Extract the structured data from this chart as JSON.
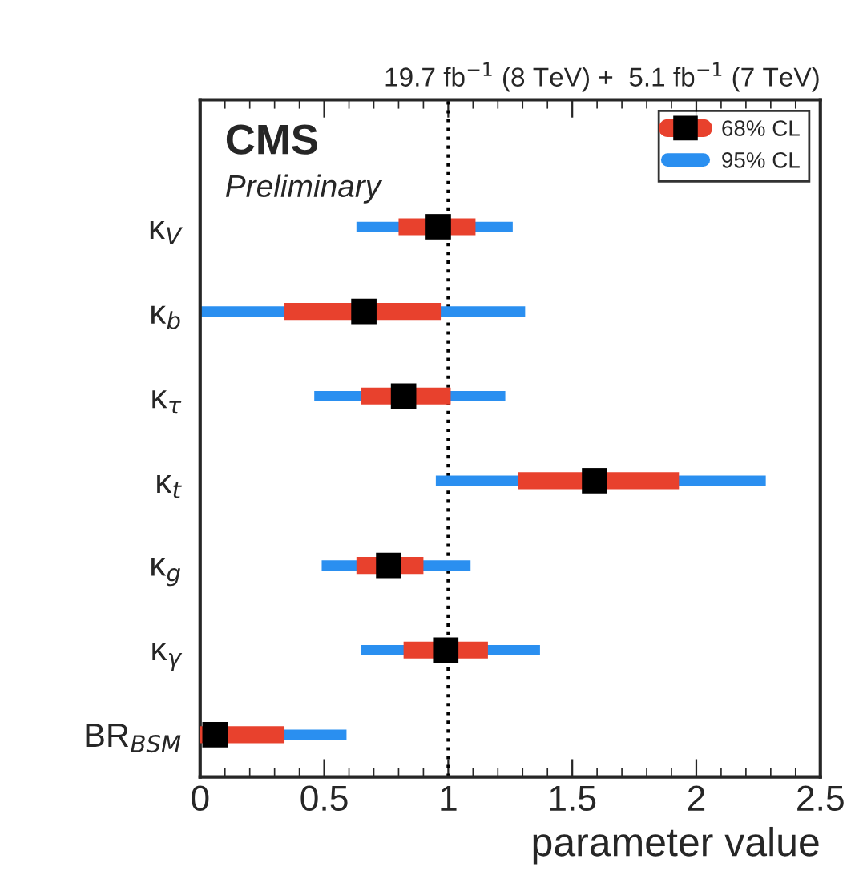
{
  "chart_data": {
    "type": "bar",
    "orientation": "horizontal",
    "title": "19.7 fb$^{−1}$ (8 TeV) +  5.1 fb$^{−1}$ (7 TeV)",
    "xlabel": "parameter value",
    "annotations": [
      "CMS",
      "Preliminary"
    ],
    "categories": [
      "κ$_{V}$",
      "κ$_{b}$",
      "κ$_{τ}$",
      "κ$_{t}$",
      "κ$_{g}$",
      "κ$_{γ}$",
      "BR$_{BSM}$"
    ],
    "series": [
      {
        "name": "95% CL",
        "color": "#2a8ff0",
        "base": [
          0.63,
          0,
          0.46,
          0.95,
          0.49,
          0.65,
          0
        ],
        "values": [
          0.63,
          1.31,
          0.77,
          1.33,
          0.6,
          0.72,
          0.59
        ]
      },
      {
        "name": "68% CL",
        "color": "#e8412d",
        "base": [
          0.8,
          0.34,
          0.65,
          1.28,
          0.63,
          0.82,
          0
        ],
        "values": [
          0.31,
          0.63,
          0.36,
          0.65,
          0.27,
          0.34,
          0.34
        ]
      },
      {
        "type": "scatter",
        "color": "#000000",
        "marker": "square",
        "values": [
          0.96,
          0.66,
          0.82,
          1.59,
          0.76,
          0.99,
          0.06
        ]
      }
    ],
    "xlim": [
      0,
      2.5
    ],
    "xticks": [
      0,
      0.5,
      1,
      1.5,
      2,
      2.5
    ],
    "ref_lines": [
      {
        "axis": "x",
        "value": 1,
        "line_style": "dotted",
        "color": "#000000"
      }
    ],
    "legend": "top right"
  }
}
